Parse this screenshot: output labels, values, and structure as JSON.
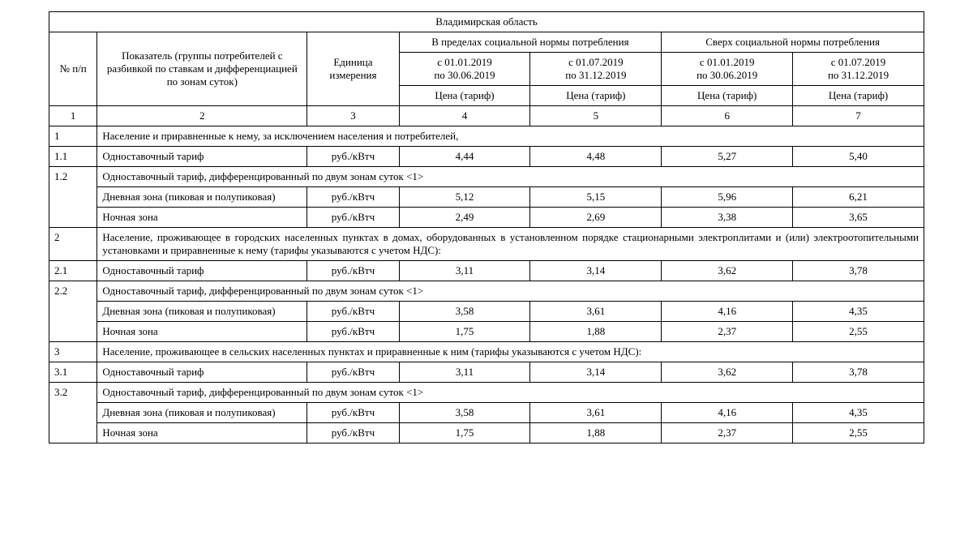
{
  "style": {
    "background": "#ffffff",
    "border": "#000000",
    "text": "#000000",
    "font_family": "Times New Roman",
    "font_size_pt": 10
  },
  "title": "Владимирская область",
  "head": {
    "col1": "№ п/п",
    "col2": "Показатель (группы потребителей с разбивкой по ставкам и дифференциацией по зонам суток)",
    "col3": "Единица измерения",
    "grp1": "В пределах социальной нормы потребления",
    "grp2": "Сверх социальной нормы потребления",
    "p1": "с 01.01.2019\nпо 30.06.2019",
    "p2": "с 01.07.2019\nпо 31.12.2019",
    "p3": "с 01.01.2019\nпо 30.06.2019",
    "p4": "с 01.07.2019\nпо 31.12.2019",
    "price": "Цена (тариф)",
    "n1": "1",
    "n2": "2",
    "n3": "3",
    "n4": "4",
    "n5": "5",
    "n6": "6",
    "n7": "7"
  },
  "unit": "руб./кВтч",
  "labels": {
    "single": "Одноставочный тариф",
    "diff2": "Одноставочный тариф, дифференцированный по двум зонам суток <1>",
    "day": "Дневная зона (пиковая и полупиковая)",
    "night": "Ночная зона"
  },
  "sections": {
    "s1": {
      "num": "1",
      "text": "Население и приравненные к нему, за исключением населения и потребителей,"
    },
    "s2": {
      "num": "2",
      "text": "Население, проживающее в городских населенных пунктах в домах, оборудованных в установленном порядке стационарными электроплитами и (или) электроотопительными установками и приравненные к нему (тарифы указываются с учетом НДС):"
    },
    "s3": {
      "num": "3",
      "text": "Население, проживающее в сельских населенных пунктах и приравненные к ним (тарифы указываются с учетом НДС):"
    }
  },
  "rows": {
    "r11": {
      "num": "1.1",
      "v": [
        "4,44",
        "4,48",
        "5,27",
        "5,40"
      ]
    },
    "r12": {
      "num": "1.2"
    },
    "r12d": {
      "v": [
        "5,12",
        "5,15",
        "5,96",
        "6,21"
      ]
    },
    "r12n": {
      "v": [
        "2,49",
        "2,69",
        "3,38",
        "3,65"
      ]
    },
    "r21": {
      "num": "2.1",
      "v": [
        "3,11",
        "3,14",
        "3,62",
        "3,78"
      ]
    },
    "r22": {
      "num": "2.2"
    },
    "r22d": {
      "v": [
        "3,58",
        "3,61",
        "4,16",
        "4,35"
      ]
    },
    "r22n": {
      "v": [
        "1,75",
        "1,88",
        "2,37",
        "2,55"
      ]
    },
    "r31": {
      "num": "3.1",
      "v": [
        "3,11",
        "3,14",
        "3,62",
        "3,78"
      ]
    },
    "r32": {
      "num": "3.2"
    },
    "r32d": {
      "v": [
        "3,58",
        "3,61",
        "4,16",
        "4,35"
      ]
    },
    "r32n": {
      "v": [
        "1,75",
        "1,88",
        "2,37",
        "2,55"
      ]
    }
  }
}
